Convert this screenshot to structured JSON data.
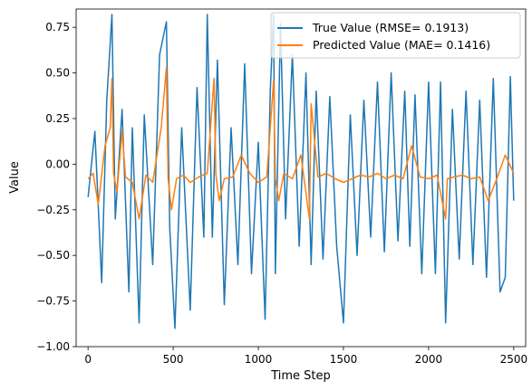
{
  "chart_data": {
    "type": "line",
    "title": "",
    "xlabel": "Time Step",
    "ylabel": "Value",
    "xlim": [
      -70,
      2570
    ],
    "ylim": [
      -1.0,
      0.85
    ],
    "x_ticks": [
      0,
      500,
      1000,
      1500,
      2000,
      2500
    ],
    "y_ticks": [
      -1.0,
      -0.75,
      -0.5,
      -0.25,
      0.0,
      0.25,
      0.5,
      0.75
    ],
    "x_tick_labels": [
      "0",
      "500",
      "1000",
      "1500",
      "2000",
      "2500"
    ],
    "y_tick_labels": [
      "−1.00",
      "−0.75",
      "−0.50",
      "−0.25",
      "0.00",
      "0.25",
      "0.50",
      "0.75"
    ],
    "grid": false,
    "legend_position": "top-right",
    "series": [
      {
        "name": "True Value (RMSE= 0.1913)",
        "color": "#1f77b4",
        "x": [
          0,
          40,
          80,
          110,
          140,
          160,
          200,
          240,
          260,
          300,
          330,
          380,
          420,
          460,
          480,
          510,
          550,
          600,
          640,
          680,
          700,
          730,
          760,
          800,
          840,
          880,
          920,
          960,
          1000,
          1040,
          1070,
          1090,
          1100,
          1130,
          1160,
          1200,
          1240,
          1280,
          1310,
          1340,
          1380,
          1420,
          1460,
          1500,
          1540,
          1580,
          1620,
          1660,
          1700,
          1740,
          1780,
          1820,
          1860,
          1890,
          1920,
          1960,
          2000,
          2040,
          2070,
          2100,
          2140,
          2180,
          2220,
          2260,
          2300,
          2340,
          2380,
          2420,
          2450,
          2480,
          2500
        ],
        "values": [
          -0.18,
          0.18,
          -0.65,
          0.35,
          0.82,
          -0.3,
          0.3,
          -0.7,
          0.2,
          -0.87,
          0.27,
          -0.55,
          0.6,
          0.78,
          -0.35,
          -0.9,
          0.2,
          -0.8,
          0.42,
          -0.4,
          0.82,
          -0.4,
          0.57,
          -0.77,
          0.2,
          -0.55,
          0.55,
          -0.6,
          0.12,
          -0.85,
          0.4,
          0.82,
          -0.6,
          0.77,
          -0.3,
          0.6,
          -0.45,
          0.5,
          -0.55,
          0.4,
          -0.52,
          0.37,
          -0.45,
          -0.87,
          0.27,
          -0.5,
          0.35,
          -0.4,
          0.45,
          -0.48,
          0.5,
          -0.42,
          0.4,
          -0.45,
          0.38,
          -0.6,
          0.45,
          -0.6,
          0.45,
          -0.87,
          0.3,
          -0.52,
          0.4,
          -0.55,
          0.35,
          -0.62,
          0.47,
          -0.7,
          -0.62,
          0.48,
          -0.2
        ]
      },
      {
        "name": "Predicted Value (MAE= 0.1416)",
        "color": "#ff7f0e",
        "x": [
          0,
          30,
          60,
          100,
          130,
          140,
          150,
          170,
          200,
          220,
          260,
          300,
          340,
          380,
          430,
          460,
          470,
          490,
          520,
          560,
          600,
          650,
          700,
          740,
          750,
          770,
          800,
          850,
          900,
          950,
          1000,
          1050,
          1090,
          1100,
          1120,
          1150,
          1200,
          1250,
          1300,
          1310,
          1350,
          1400,
          1450,
          1500,
          1550,
          1600,
          1650,
          1700,
          1750,
          1800,
          1850,
          1900,
          1950,
          2000,
          2050,
          2100,
          2110,
          2150,
          2200,
          2250,
          2300,
          2350,
          2400,
          2450,
          2500
        ],
        "values": [
          -0.08,
          -0.05,
          -0.22,
          0.1,
          0.2,
          0.47,
          -0.05,
          -0.15,
          0.18,
          -0.07,
          -0.1,
          -0.3,
          -0.06,
          -0.1,
          0.2,
          0.53,
          -0.08,
          -0.25,
          -0.08,
          -0.06,
          -0.1,
          -0.07,
          -0.05,
          0.47,
          -0.05,
          -0.2,
          -0.08,
          -0.07,
          0.05,
          -0.05,
          -0.1,
          -0.07,
          0.46,
          -0.08,
          -0.2,
          -0.05,
          -0.08,
          0.05,
          -0.3,
          0.33,
          -0.07,
          -0.05,
          -0.08,
          -0.1,
          -0.08,
          -0.06,
          -0.07,
          -0.05,
          -0.08,
          -0.06,
          -0.08,
          0.1,
          -0.07,
          -0.08,
          -0.06,
          -0.3,
          -0.08,
          -0.07,
          -0.06,
          -0.08,
          -0.07,
          -0.2,
          -0.08,
          0.05,
          -0.05
        ]
      }
    ]
  }
}
